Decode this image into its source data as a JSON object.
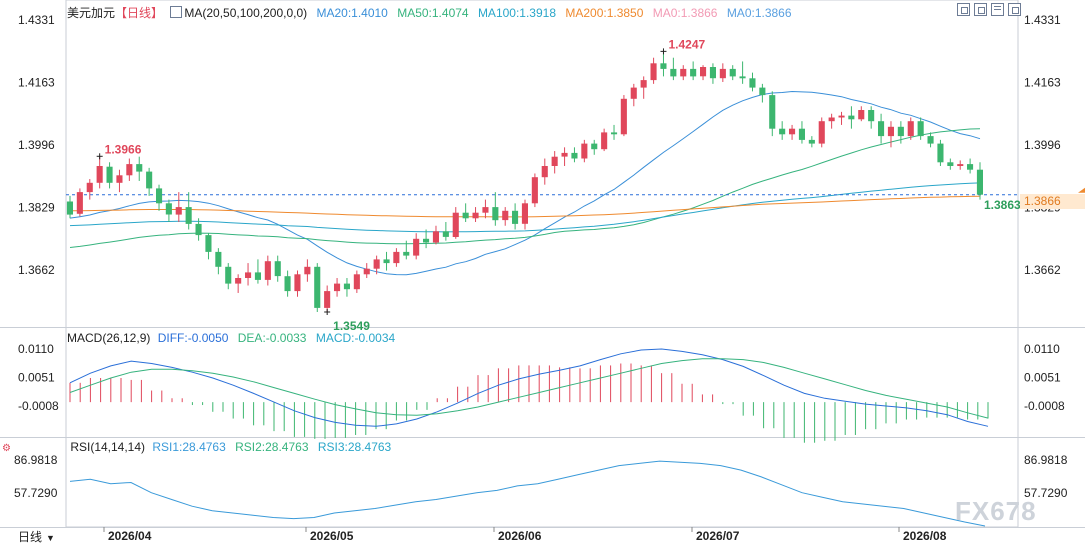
{
  "header": {
    "symbol": "美元加元",
    "period": "【日线】",
    "ma_label": "MA(20,50,100,200,0,0)",
    "ma20": "MA20:1.4010",
    "ma50": "MA50:1.4074",
    "ma100": "MA100:1.3918",
    "ma200": "MA200:1.3850",
    "ma0a": "MA0:1.3866",
    "ma0b": "MA0:1.3866"
  },
  "macd_header": {
    "label": "MACD(26,12,9)",
    "diff": "DIFF:-0.0050",
    "dea": "DEA:-0.0033",
    "macd": "MACD:-0.0034"
  },
  "rsi_header": {
    "label": "RSI(14,14,14)",
    "rsi1": "RSI1:28.4763",
    "rsi2": "RSI2:28.4763",
    "rsi3": "RSI3:28.4763"
  },
  "price_axis": [
    "1.4331",
    "1.4163",
    "1.3996",
    "1.3829",
    "1.3662"
  ],
  "macd_axis": [
    "0.0110",
    "0.0051",
    "-0.0008"
  ],
  "rsi_axis": [
    "86.9818",
    "57.7290"
  ],
  "date_axis": [
    "2026/04",
    "2026/05",
    "2026/06",
    "2026/07",
    "2026/08"
  ],
  "annotations": {
    "high1": "1.3966",
    "low1": "1.3549",
    "high2": "1.4247",
    "last": "1.3863"
  },
  "current_price": "1.3866",
  "period_button": "日线",
  "watermark": "FX678",
  "colors": {
    "up": "#e0475b",
    "down": "#3cb66f",
    "ma20": "#3a8fd8",
    "ma50": "#36b37e",
    "ma100": "#2aa6c9",
    "ma200": "#ef8a2f",
    "diff": "#2a6fd8",
    "dea": "#36b37e",
    "rsi": "#3a9ad9",
    "accent_red": "#e0475b"
  },
  "chart_data": [
    {
      "type": "candlestick",
      "title": "美元加元【日线】",
      "ylim": [
        1.3549,
        1.4331
      ],
      "x_ticks": [
        "2026/04",
        "2026/05",
        "2026/06",
        "2026/07",
        "2026/08"
      ],
      "ohlc": [
        [
          1.3845,
          1.386,
          1.38,
          1.381
        ],
        [
          1.3812,
          1.388,
          1.3805,
          1.387
        ],
        [
          1.387,
          1.3905,
          1.385,
          1.3895
        ],
        [
          1.3895,
          1.3966,
          1.388,
          1.394
        ],
        [
          1.3938,
          1.395,
          1.388,
          1.3895
        ],
        [
          1.3895,
          1.393,
          1.387,
          1.3915
        ],
        [
          1.3915,
          1.396,
          1.39,
          1.3945
        ],
        [
          1.3945,
          1.3965,
          1.39,
          1.3925
        ],
        [
          1.3925,
          1.3935,
          1.386,
          1.388
        ],
        [
          1.388,
          1.389,
          1.382,
          1.384
        ],
        [
          1.384,
          1.385,
          1.379,
          1.381
        ],
        [
          1.381,
          1.387,
          1.379,
          1.383
        ],
        [
          1.383,
          1.387,
          1.377,
          1.3785
        ],
        [
          1.3785,
          1.38,
          1.374,
          1.3755
        ],
        [
          1.3755,
          1.376,
          1.369,
          1.371
        ],
        [
          1.371,
          1.372,
          1.365,
          1.367
        ],
        [
          1.367,
          1.368,
          1.361,
          1.3625
        ],
        [
          1.3625,
          1.365,
          1.36,
          1.364
        ],
        [
          1.364,
          1.368,
          1.362,
          1.3655
        ],
        [
          1.3655,
          1.369,
          1.3625,
          1.3635
        ],
        [
          1.3635,
          1.37,
          1.362,
          1.3685
        ],
        [
          1.3685,
          1.37,
          1.363,
          1.3645
        ],
        [
          1.3645,
          1.366,
          1.359,
          1.3605
        ],
        [
          1.3605,
          1.366,
          1.359,
          1.365
        ],
        [
          1.365,
          1.369,
          1.363,
          1.367
        ],
        [
          1.367,
          1.368,
          1.3549,
          1.356
        ],
        [
          1.356,
          1.362,
          1.3549,
          1.3605
        ],
        [
          1.3605,
          1.364,
          1.359,
          1.3625
        ],
        [
          1.3625,
          1.364,
          1.359,
          1.361
        ],
        [
          1.361,
          1.366,
          1.36,
          1.365
        ],
        [
          1.365,
          1.368,
          1.364,
          1.3665
        ],
        [
          1.3665,
          1.37,
          1.365,
          1.369
        ],
        [
          1.369,
          1.371,
          1.366,
          1.368
        ],
        [
          1.368,
          1.372,
          1.367,
          1.371
        ],
        [
          1.371,
          1.374,
          1.369,
          1.37
        ],
        [
          1.37,
          1.376,
          1.369,
          1.3745
        ],
        [
          1.3745,
          1.377,
          1.372,
          1.3735
        ],
        [
          1.3735,
          1.378,
          1.373,
          1.3765
        ],
        [
          1.3765,
          1.379,
          1.374,
          1.375
        ],
        [
          1.375,
          1.383,
          1.3745,
          1.3815
        ],
        [
          1.3815,
          1.384,
          1.379,
          1.38
        ],
        [
          1.38,
          1.383,
          1.379,
          1.3815
        ],
        [
          1.3815,
          1.385,
          1.38,
          1.383
        ],
        [
          1.383,
          1.387,
          1.378,
          1.3795
        ],
        [
          1.3795,
          1.383,
          1.378,
          1.382
        ],
        [
          1.382,
          1.384,
          1.377,
          1.3785
        ],
        [
          1.3785,
          1.385,
          1.377,
          1.384
        ],
        [
          1.384,
          1.392,
          1.383,
          1.391
        ],
        [
          1.391,
          1.396,
          1.389,
          1.394
        ],
        [
          1.394,
          1.398,
          1.392,
          1.3965
        ],
        [
          1.3965,
          1.399,
          1.394,
          1.3975
        ],
        [
          1.3975,
          1.399,
          1.395,
          1.396
        ],
        [
          1.396,
          1.401,
          1.395,
          1.4
        ],
        [
          1.4,
          1.401,
          1.397,
          1.3985
        ],
        [
          1.3985,
          1.404,
          1.398,
          1.403
        ],
        [
          1.403,
          1.405,
          1.401,
          1.4025
        ],
        [
          1.4025,
          1.413,
          1.402,
          1.412
        ],
        [
          1.412,
          1.416,
          1.41,
          1.415
        ],
        [
          1.415,
          1.418,
          1.412,
          1.417
        ],
        [
          1.417,
          1.423,
          1.416,
          1.4215
        ],
        [
          1.4215,
          1.4247,
          1.418,
          1.42
        ],
        [
          1.42,
          1.423,
          1.417,
          1.418
        ],
        [
          1.418,
          1.421,
          1.417,
          1.42
        ],
        [
          1.42,
          1.422,
          1.417,
          1.418
        ],
        [
          1.418,
          1.421,
          1.417,
          1.4205
        ],
        [
          1.4205,
          1.4215,
          1.416,
          1.4175
        ],
        [
          1.4175,
          1.4215,
          1.4165,
          1.42
        ],
        [
          1.42,
          1.421,
          1.417,
          1.418
        ],
        [
          1.418,
          1.422,
          1.416,
          1.4175
        ],
        [
          1.4175,
          1.419,
          1.414,
          1.415
        ],
        [
          1.415,
          1.416,
          1.411,
          1.413
        ],
        [
          1.413,
          1.414,
          1.402,
          1.404
        ],
        [
          1.404,
          1.406,
          1.401,
          1.4025
        ],
        [
          1.4025,
          1.405,
          1.401,
          1.404
        ],
        [
          1.404,
          1.406,
          1.4,
          1.401
        ],
        [
          1.401,
          1.402,
          1.399,
          1.4
        ],
        [
          1.4,
          1.407,
          1.399,
          1.406
        ],
        [
          1.406,
          1.408,
          1.404,
          1.407
        ],
        [
          1.407,
          1.4085,
          1.405,
          1.4075
        ],
        [
          1.4075,
          1.41,
          1.404,
          1.4065
        ],
        [
          1.4065,
          1.41,
          1.406,
          1.409
        ],
        [
          1.409,
          1.41,
          1.404,
          1.406
        ],
        [
          1.406,
          1.408,
          1.4,
          1.402
        ],
        [
          1.402,
          1.406,
          1.399,
          1.4045
        ],
        [
          1.4045,
          1.406,
          1.4,
          1.402
        ],
        [
          1.402,
          1.407,
          1.401,
          1.406
        ],
        [
          1.406,
          1.407,
          1.401,
          1.402
        ],
        [
          1.402,
          1.403,
          1.399,
          1.4
        ],
        [
          1.4,
          1.401,
          1.394,
          1.395
        ],
        [
          1.395,
          1.396,
          1.393,
          1.394
        ],
        [
          1.394,
          1.3955,
          1.393,
          1.3945
        ],
        [
          1.3945,
          1.396,
          1.392,
          1.393
        ],
        [
          1.393,
          1.395,
          1.385,
          1.3863
        ]
      ],
      "last_price": 1.3863
    },
    {
      "type": "line",
      "title": "MACD(26,12,9)",
      "ylim": [
        -0.007,
        0.013
      ],
      "series": [
        {
          "name": "DIFF",
          "values": [
            0.004,
            0.006,
            0.0075,
            0.0085,
            0.008,
            0.0072,
            0.0062,
            0.005,
            0.0035,
            0.0018,
            0.0,
            -0.0018,
            -0.0032,
            -0.0042,
            -0.0048,
            -0.005,
            -0.0045,
            -0.0035,
            -0.002,
            -0.0002,
            0.0018,
            0.0035,
            0.0048,
            0.0058,
            0.0066,
            0.0075,
            0.0088,
            0.01,
            0.0108,
            0.011,
            0.0105,
            0.0098,
            0.0088,
            0.0074,
            0.0055,
            0.0035,
            0.0018,
            0.0008,
            0.0002,
            -0.0004,
            -0.0008,
            -0.0012,
            -0.0018,
            -0.0026,
            -0.004,
            -0.005
          ]
        },
        {
          "name": "DEA",
          "values": [
            0.002,
            0.0035,
            0.005,
            0.0062,
            0.0068,
            0.0068,
            0.0065,
            0.006,
            0.0052,
            0.0042,
            0.003,
            0.0018,
            0.0006,
            -0.0005,
            -0.0014,
            -0.0022,
            -0.0026,
            -0.0027,
            -0.0024,
            -0.0018,
            -0.001,
            0.0,
            0.001,
            0.002,
            0.003,
            0.004,
            0.005,
            0.006,
            0.007,
            0.008,
            0.0086,
            0.009,
            0.009,
            0.0088,
            0.0082,
            0.0072,
            0.006,
            0.0048,
            0.0036,
            0.0024,
            0.0014,
            0.0006,
            -0.0002,
            -0.001,
            -0.0022,
            -0.0033
          ]
        }
      ],
      "histogram_name": "MACD",
      "last_macd": -0.0034
    },
    {
      "type": "line",
      "title": "RSI(14,14,14)",
      "ylim": [
        30,
        100
      ],
      "series": [
        {
          "name": "RSI1",
          "values": [
            68,
            70,
            66,
            67,
            58,
            52,
            46,
            42,
            40,
            38,
            36,
            35,
            36,
            40,
            42,
            44,
            47,
            50,
            52,
            55,
            58,
            60,
            64,
            66,
            70,
            74,
            78,
            82,
            84,
            86,
            85,
            84,
            82,
            78,
            72,
            65,
            58,
            54,
            50,
            48,
            46,
            44,
            40,
            36,
            32,
            28.4763
          ]
        },
        {
          "name": "RSI2",
          "values": [
            68,
            70,
            66,
            67,
            58,
            52,
            46,
            42,
            40,
            38,
            36,
            35,
            36,
            40,
            42,
            44,
            47,
            50,
            52,
            55,
            58,
            60,
            64,
            66,
            70,
            74,
            78,
            82,
            84,
            86,
            85,
            84,
            82,
            78,
            72,
            65,
            58,
            54,
            50,
            48,
            46,
            44,
            40,
            36,
            32,
            28.4763
          ]
        },
        {
          "name": "RSI3",
          "values": [
            68,
            70,
            66,
            67,
            58,
            52,
            46,
            42,
            40,
            38,
            36,
            35,
            36,
            40,
            42,
            44,
            47,
            50,
            52,
            55,
            58,
            60,
            64,
            66,
            70,
            74,
            78,
            82,
            84,
            86,
            85,
            84,
            82,
            78,
            72,
            65,
            58,
            54,
            50,
            48,
            46,
            44,
            40,
            36,
            32,
            28.4763
          ]
        }
      ]
    }
  ]
}
